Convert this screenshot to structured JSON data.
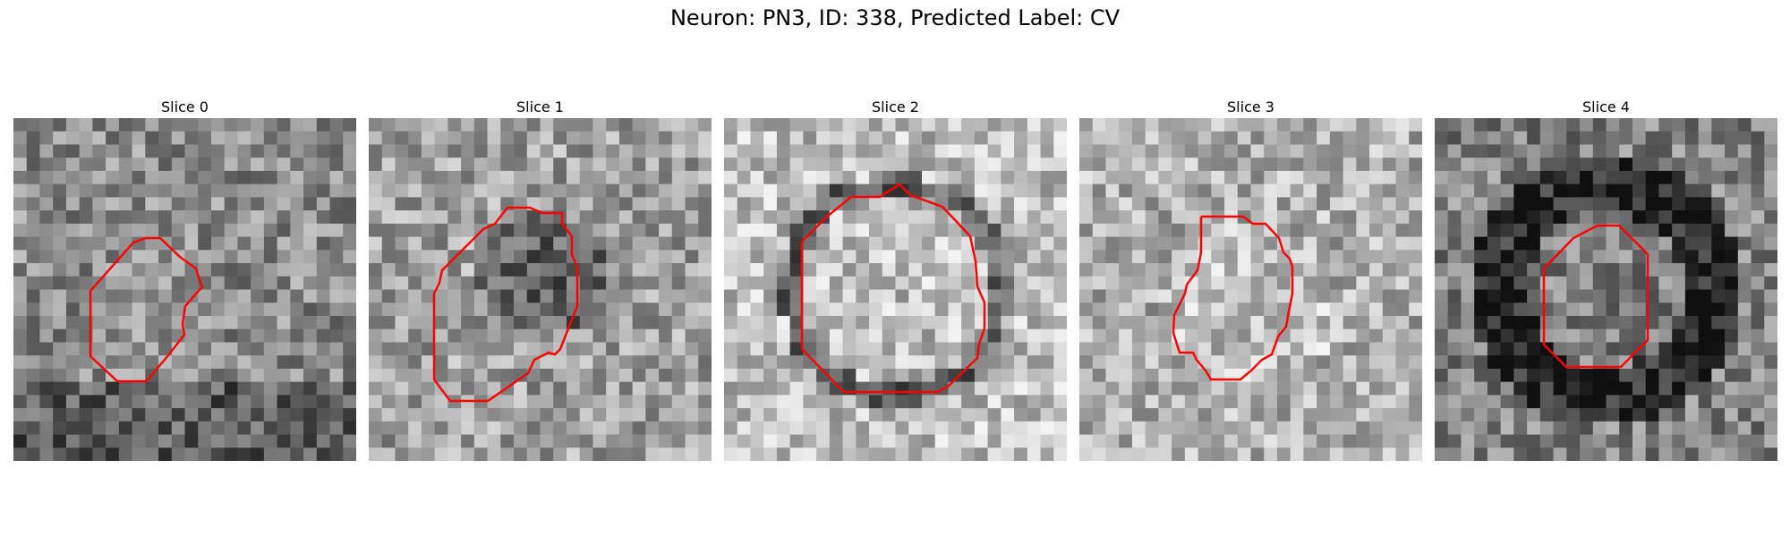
{
  "figure": {
    "title": "Neuron: PN3, ID: 338, Predicted Label: CV"
  },
  "contour_color": "#ff0000",
  "slices": [
    {
      "title": "Slice 0",
      "seed": 11,
      "base": 140,
      "center": [
        0.5,
        0.35
      ],
      "ring": "mixed"
    },
    {
      "title": "Slice 1",
      "seed": 23,
      "base": 160,
      "center": [
        0.5,
        0.45
      ],
      "ring": "dark"
    },
    {
      "title": "Slice 2",
      "seed": 37,
      "base": 190,
      "center": [
        0.5,
        0.5
      ],
      "ring": "dark-ring"
    },
    {
      "title": "Slice 3",
      "seed": 51,
      "base": 175,
      "center": [
        0.5,
        0.55
      ],
      "ring": "light"
    },
    {
      "title": "Slice 4",
      "seed": 67,
      "base": 130,
      "center": [
        0.5,
        0.5
      ],
      "ring": "dark-halo"
    }
  ]
}
